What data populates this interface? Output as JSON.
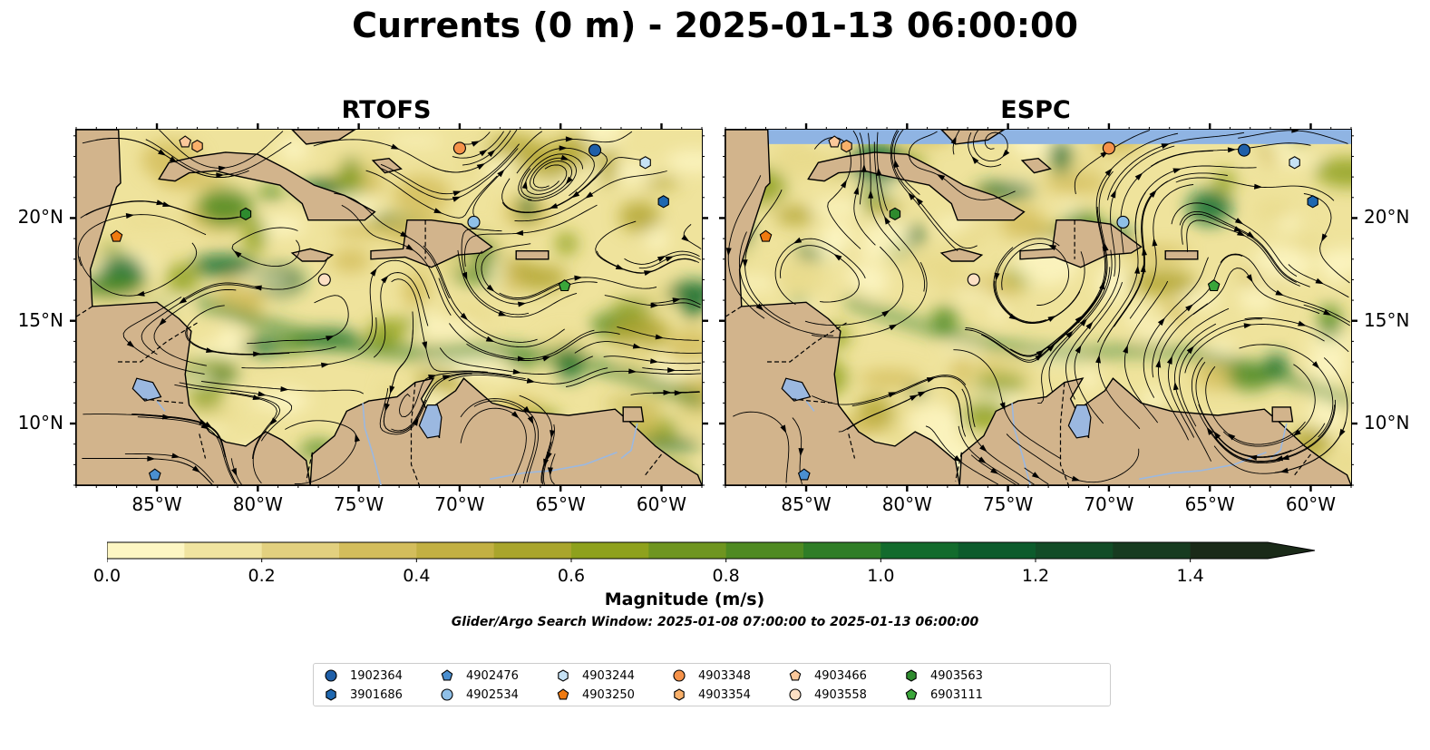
{
  "title": "Currents (0 m) - 2025-01-13 06:00:00",
  "panels": [
    {
      "name": "RTOFS"
    },
    {
      "name": "ESPC"
    }
  ],
  "map": {
    "lon_range": [
      -89,
      -58
    ],
    "lat_range": [
      7,
      24.3
    ],
    "lon_ticks": [
      {
        "value": -85,
        "label": "85°W"
      },
      {
        "value": -80,
        "label": "80°W"
      },
      {
        "value": -75,
        "label": "75°W"
      },
      {
        "value": -70,
        "label": "70°W"
      },
      {
        "value": -65,
        "label": "65°W"
      },
      {
        "value": -60,
        "label": "60°W"
      }
    ],
    "lat_ticks": [
      {
        "value": 10,
        "label": "10°N"
      },
      {
        "value": 15,
        "label": "15°N"
      },
      {
        "value": 20,
        "label": "20°N"
      }
    ],
    "colors": {
      "land": "#d2b48c",
      "ocean_low": "#fdf6c3",
      "water_body": "#9bb8e0",
      "coast": "#000000"
    }
  },
  "colorbar": {
    "label": "Magnitude (m/s)",
    "min": 0.0,
    "max": 1.5,
    "extend": "max",
    "ticks": [
      {
        "value": 0.0,
        "label": "0.0"
      },
      {
        "value": 0.2,
        "label": "0.2"
      },
      {
        "value": 0.4,
        "label": "0.4"
      },
      {
        "value": 0.6,
        "label": "0.6"
      },
      {
        "value": 0.8,
        "label": "0.8"
      },
      {
        "value": 1.0,
        "label": "1.0"
      },
      {
        "value": 1.2,
        "label": "1.2"
      },
      {
        "value": 1.4,
        "label": "1.4"
      }
    ],
    "colors": [
      "#fdf6c3",
      "#f0e4a0",
      "#e2d07f",
      "#d3bd5c",
      "#c2b043",
      "#a9a52c",
      "#8ea11d",
      "#6f9520",
      "#4f8a22",
      "#2f7d27",
      "#136b2d",
      "#0c5b2c",
      "#124c27",
      "#173b20",
      "#1a2a18"
    ]
  },
  "subtitle": "Glider/Argo Search Window: 2025-01-08 07:00:00 to 2025-01-13 06:00:00",
  "legend": [
    {
      "id": "1902364",
      "marker": "circle",
      "color": "#1f5fa8"
    },
    {
      "id": "3901686",
      "marker": "hexagon",
      "color": "#1f68b0"
    },
    {
      "id": "4902476",
      "marker": "pentagon",
      "color": "#4a8fd0"
    },
    {
      "id": "4902534",
      "marker": "circle",
      "color": "#8fc0e8"
    },
    {
      "id": "4903244",
      "marker": "hexagon",
      "color": "#c6e2f5"
    },
    {
      "id": "4903250",
      "marker": "pentagon",
      "color": "#f07a10"
    },
    {
      "id": "4903348",
      "marker": "circle",
      "color": "#f5924a"
    },
    {
      "id": "4903354",
      "marker": "hexagon",
      "color": "#f9b06a"
    },
    {
      "id": "4903466",
      "marker": "pentagon",
      "color": "#fbc89a"
    },
    {
      "id": "4903558",
      "marker": "circle",
      "color": "#fde0c4"
    },
    {
      "id": "4903563",
      "marker": "hexagon",
      "color": "#2e8b2e"
    },
    {
      "id": "6903111",
      "marker": "pentagon",
      "color": "#3aa63a"
    }
  ],
  "floats": {
    "RTOFS": [
      {
        "id": "1902364",
        "lon": -63.3,
        "lat": 23.3
      },
      {
        "id": "3901686",
        "lon": -59.9,
        "lat": 20.8
      },
      {
        "id": "4902476",
        "lon": -85.1,
        "lat": 7.5
      },
      {
        "id": "4902534",
        "lon": -69.3,
        "lat": 19.8
      },
      {
        "id": "4903244",
        "lon": -60.8,
        "lat": 22.7
      },
      {
        "id": "4903250",
        "lon": -87.0,
        "lat": 19.1
      },
      {
        "id": "4903348",
        "lon": -70.0,
        "lat": 23.4
      },
      {
        "id": "4903354",
        "lon": -83.0,
        "lat": 23.5
      },
      {
        "id": "4903466",
        "lon": -83.6,
        "lat": 23.7
      },
      {
        "id": "4903558",
        "lon": -76.7,
        "lat": 17.0
      },
      {
        "id": "4903563",
        "lon": -80.6,
        "lat": 20.2
      },
      {
        "id": "6903111",
        "lon": -64.8,
        "lat": 16.7
      }
    ],
    "ESPC": [
      {
        "id": "1902364",
        "lon": -63.3,
        "lat": 23.3
      },
      {
        "id": "3901686",
        "lon": -59.9,
        "lat": 20.8
      },
      {
        "id": "4902476",
        "lon": -85.1,
        "lat": 7.5
      },
      {
        "id": "4902534",
        "lon": -69.3,
        "lat": 19.8
      },
      {
        "id": "4903244",
        "lon": -60.8,
        "lat": 22.7
      },
      {
        "id": "4903250",
        "lon": -87.0,
        "lat": 19.1
      },
      {
        "id": "4903348",
        "lon": -70.0,
        "lat": 23.4
      },
      {
        "id": "4903354",
        "lon": -83.0,
        "lat": 23.5
      },
      {
        "id": "4903466",
        "lon": -83.6,
        "lat": 23.7
      },
      {
        "id": "4903558",
        "lon": -76.7,
        "lat": 17.0
      },
      {
        "id": "4903563",
        "lon": -80.6,
        "lat": 20.2
      },
      {
        "id": "6903111",
        "lon": -64.8,
        "lat": 16.7
      }
    ]
  }
}
